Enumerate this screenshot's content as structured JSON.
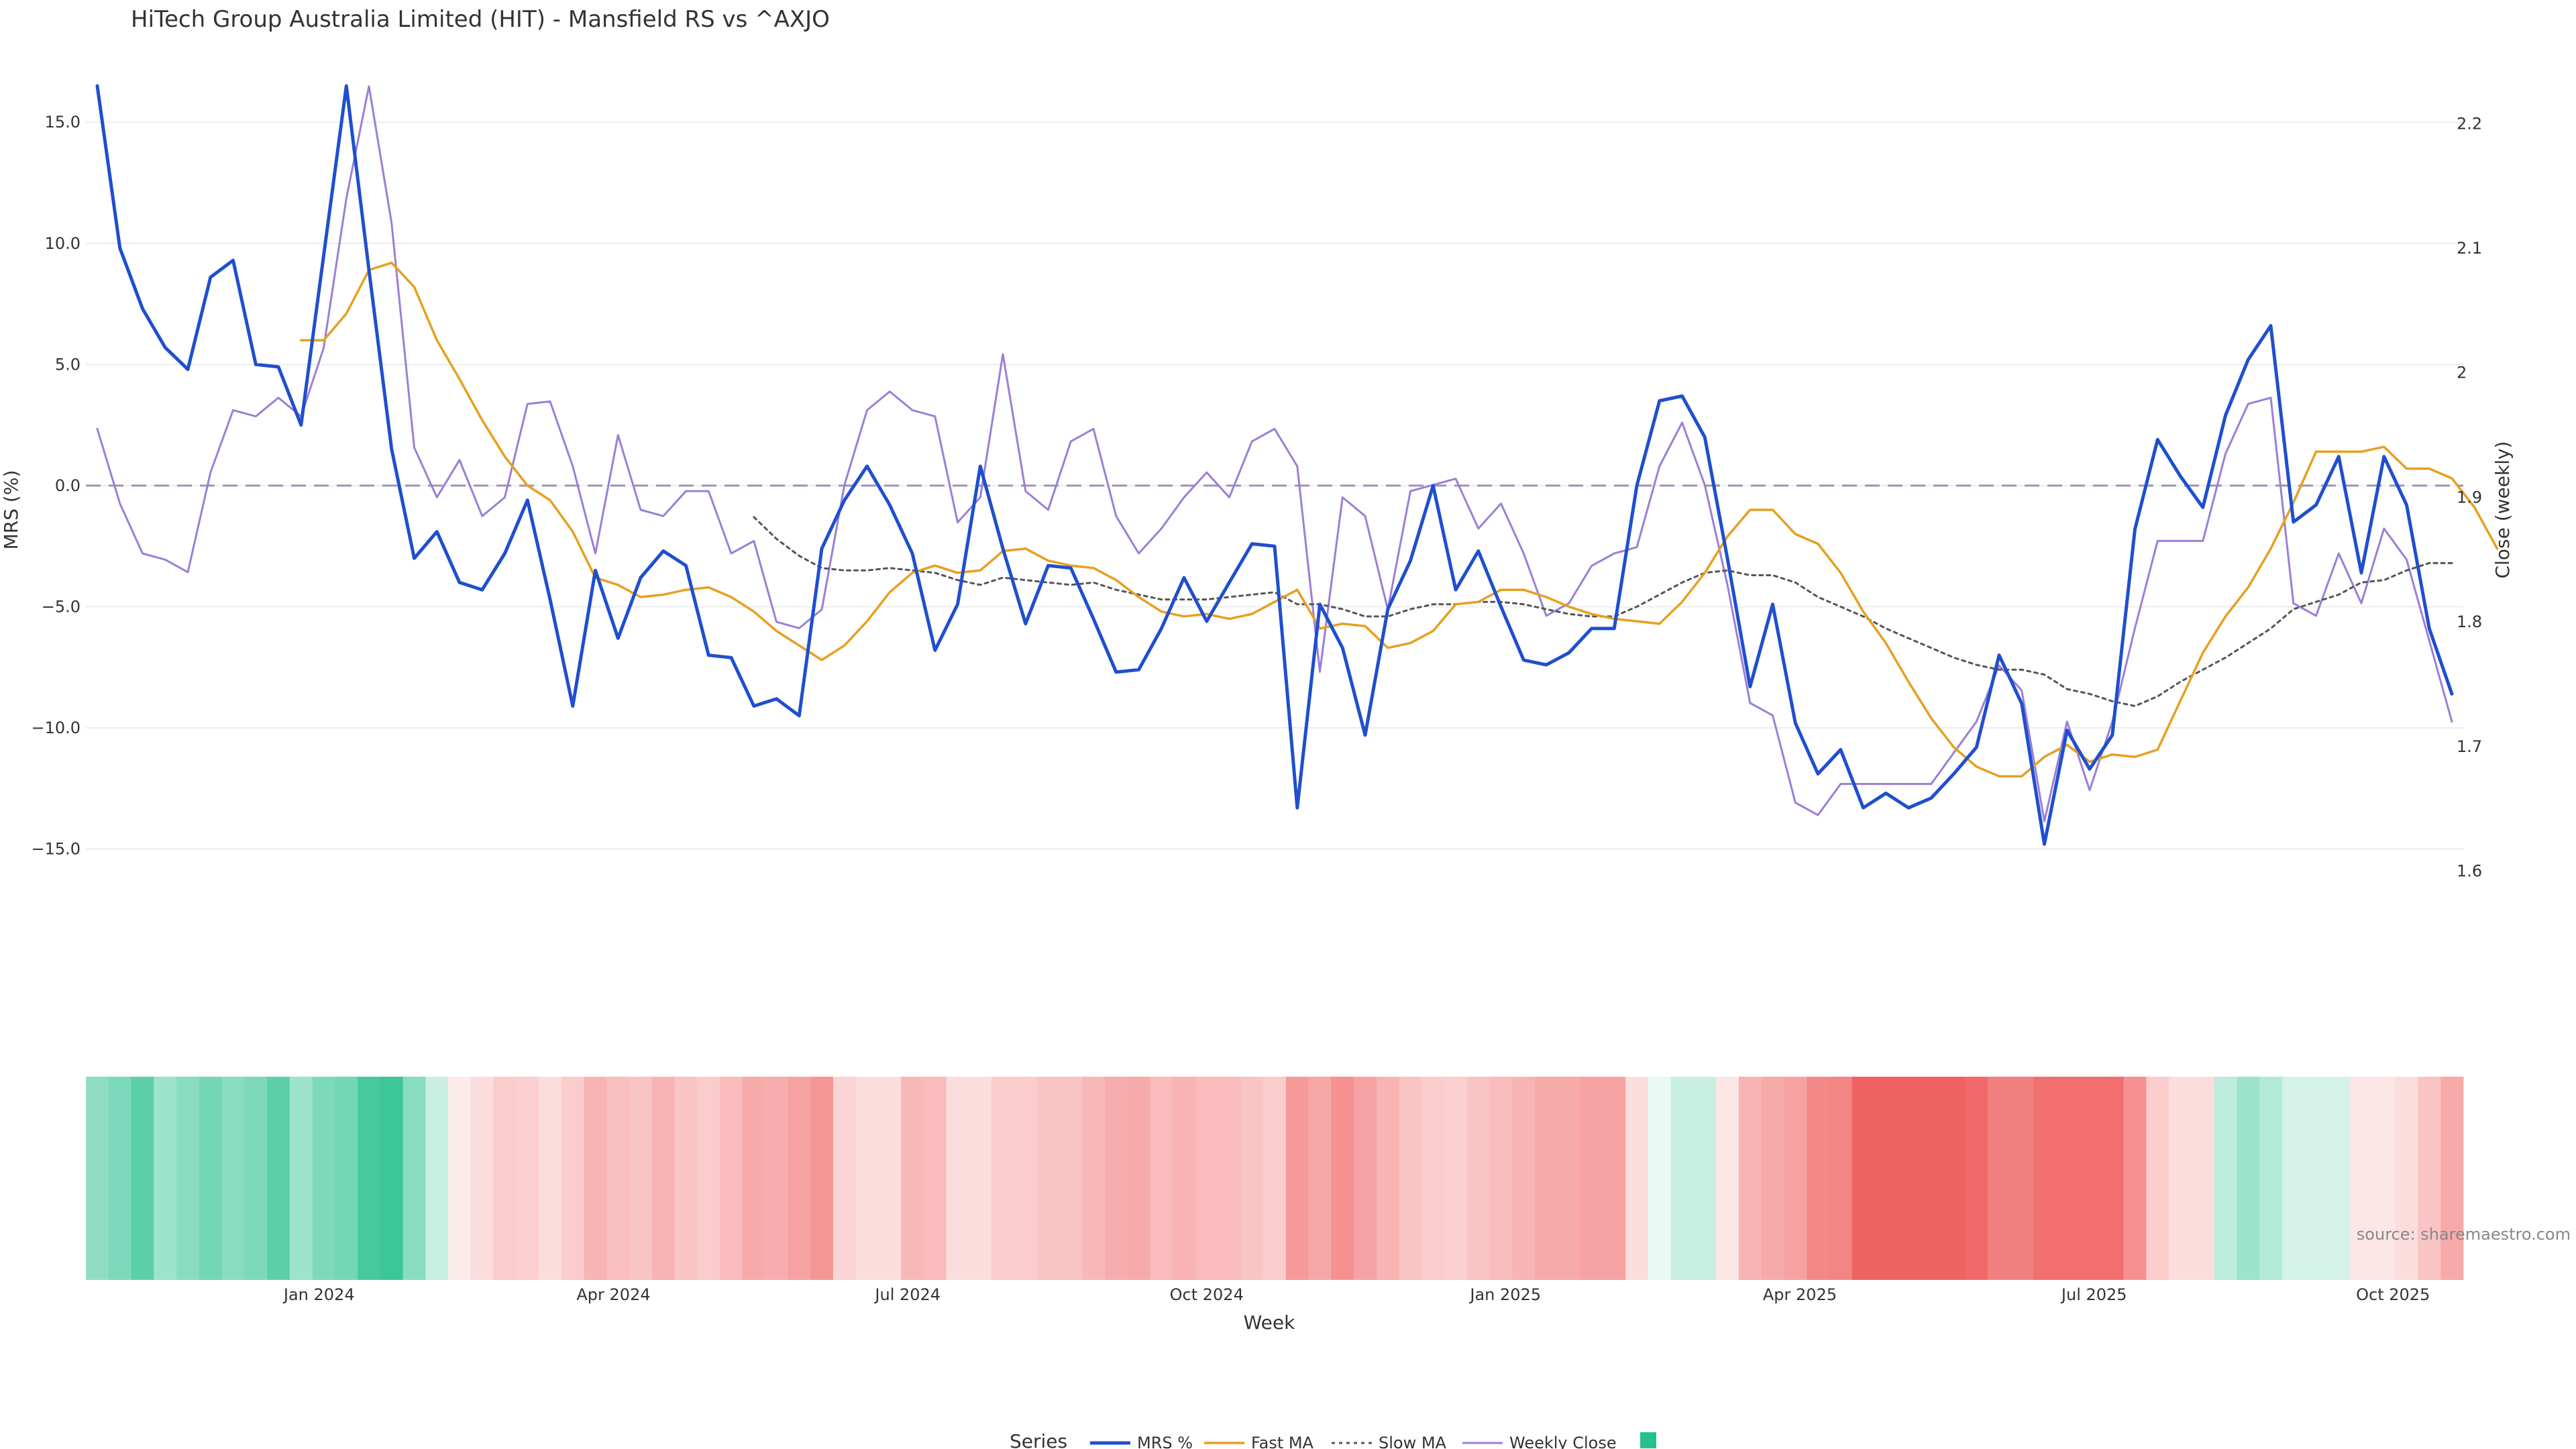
{
  "chart_data": {
    "type": "line",
    "title": "HiTech Group Australia Limited (HIT) - Mansfield RS vs ^AXJO",
    "xlabel": "Week",
    "y_left_label": "MRS (%)",
    "y_right_label": "Close (weekly)",
    "y_left_range": [
      -19.0,
      17.0
    ],
    "y_right_range": [
      1.54,
      2.24
    ],
    "y_left_ticks": [
      "15.0",
      "10.0",
      "5.0",
      "0.0",
      "−5.0",
      "−10.0",
      "−15.0"
    ],
    "y_left_tick_values": [
      15,
      10,
      5,
      0,
      -5,
      -10,
      -15
    ],
    "y_right_ticks": [
      "2.2",
      "2.1",
      "2",
      "1.9",
      "1.8",
      "1.7",
      "1.6"
    ],
    "y_right_tick_values": [
      2.2,
      2.1,
      2.0,
      1.9,
      1.8,
      1.7,
      1.6
    ],
    "x_ticks": [
      "Jan 2024",
      "Apr 2024",
      "Jul 2024",
      "Oct 2024",
      "Jan 2025",
      "Apr 2025",
      "Jul 2025",
      "Oct 2025"
    ],
    "x_tick_weeks": [
      9.8,
      22.8,
      35.8,
      49.0,
      62.2,
      75.2,
      88.2,
      101.4
    ],
    "reference_line": 0,
    "grid": true,
    "legend_placement": "bottom-center",
    "legend_title": "Series",
    "source": "source: sharemaestro.com",
    "colors": {
      "mrs": "#1f4fce",
      "fast_ma": "#e6a020",
      "slow_ma": "#555555",
      "close": "#9b7fd6",
      "zero_line": "#9a93b8",
      "positive": "#27c08d",
      "negative": "#ef5555"
    },
    "series": [
      {
        "name": "MRS %",
        "axis": "left",
        "style": "solid",
        "values": [
          16.5,
          9.8,
          7.3,
          5.7,
          4.8,
          8.6,
          9.3,
          5.0,
          4.9,
          2.5,
          9.5,
          16.5,
          8.9,
          1.5,
          -3.0,
          -1.9,
          -4.0,
          -4.3,
          -2.8,
          -0.6,
          -4.7,
          -9.1,
          -3.5,
          -6.3,
          -3.8,
          -2.7,
          -3.3,
          -7.0,
          -7.1,
          -9.1,
          -8.8,
          -9.5,
          -2.6,
          -0.6,
          0.8,
          -0.8,
          -2.8,
          -6.8,
          -4.9,
          0.8,
          -2.6,
          -5.7,
          -3.3,
          -3.4,
          -5.5,
          -7.7,
          -7.6,
          -5.9,
          -3.8,
          -5.6,
          -4.0,
          -2.4,
          -2.5,
          -13.3,
          -4.9,
          -6.7,
          -10.3,
          -5.1,
          -3.1,
          0.0,
          -4.3,
          -2.7,
          -5.0,
          -7.2,
          -7.4,
          -6.9,
          -5.9,
          -5.9,
          0.0,
          3.5,
          3.7,
          2.0,
          -3.0,
          -8.3,
          -4.9,
          -9.8,
          -11.9,
          -10.9,
          -13.3,
          -12.7,
          -13.3,
          -12.9,
          -11.9,
          -10.8,
          -7.0,
          -9.0,
          -14.8,
          -10.1,
          -11.7,
          -10.3,
          -1.8,
          1.9,
          0.4,
          -0.9,
          2.9,
          5.2,
          6.6,
          -1.5,
          -0.8,
          1.2,
          -3.6,
          1.2,
          -0.8,
          -5.9,
          -8.6
        ]
      },
      {
        "name": "Fast MA",
        "axis": "left",
        "style": "solid",
        "values": [
          null,
          null,
          null,
          null,
          null,
          null,
          null,
          null,
          null,
          6.0,
          6.0,
          7.1,
          8.9,
          9.2,
          8.2,
          6.0,
          4.4,
          2.7,
          1.2,
          0.0,
          -0.6,
          -1.9,
          -3.8,
          -4.1,
          -4.6,
          -4.5,
          -4.3,
          -4.2,
          -4.6,
          -5.2,
          -6.0,
          -6.6,
          -7.2,
          -6.6,
          -5.6,
          -4.4,
          -3.6,
          -3.3,
          -3.6,
          -3.5,
          -2.7,
          -2.6,
          -3.1,
          -3.3,
          -3.4,
          -3.9,
          -4.6,
          -5.2,
          -5.4,
          -5.3,
          -5.5,
          -5.3,
          -4.8,
          -4.3,
          -5.9,
          -5.7,
          -5.8,
          -6.7,
          -6.5,
          -6.0,
          -4.9,
          -4.8,
          -4.3,
          -4.3,
          -4.6,
          -5.0,
          -5.3,
          -5.5,
          -5.6,
          -5.7,
          -4.8,
          -3.6,
          -2.1,
          -1.0,
          -1.0,
          -2.0,
          -2.4,
          -3.6,
          -5.2,
          -6.5,
          -8.1,
          -9.6,
          -10.8,
          -11.6,
          -12.0,
          -12.0,
          -11.2,
          -10.7,
          -11.4,
          -11.1,
          -11.2,
          -10.9,
          -8.9,
          -6.9,
          -5.4,
          -4.2,
          -2.6,
          -0.7,
          1.4,
          1.4,
          1.4,
          1.6,
          0.7,
          0.7,
          0.3,
          -0.9,
          -2.6
        ]
      },
      {
        "name": "Slow MA",
        "axis": "left",
        "style": "dotted",
        "values": [
          null,
          null,
          null,
          null,
          null,
          null,
          null,
          null,
          null,
          null,
          null,
          null,
          null,
          null,
          null,
          null,
          null,
          null,
          null,
          null,
          null,
          null,
          null,
          null,
          null,
          null,
          null,
          null,
          null,
          -1.3,
          -2.2,
          -2.9,
          -3.4,
          -3.5,
          -3.5,
          -3.4,
          -3.5,
          -3.6,
          -3.9,
          -4.1,
          -3.8,
          -3.9,
          -4.0,
          -4.1,
          -4.0,
          -4.3,
          -4.5,
          -4.7,
          -4.7,
          -4.7,
          -4.6,
          -4.5,
          -4.4,
          -4.9,
          -4.9,
          -5.1,
          -5.4,
          -5.4,
          -5.1,
          -4.9,
          -4.9,
          -4.8,
          -4.8,
          -4.9,
          -5.1,
          -5.3,
          -5.4,
          -5.4,
          -5.0,
          -4.5,
          -4.0,
          -3.6,
          -3.5,
          -3.7,
          -3.7,
          -4.0,
          -4.6,
          -5.0,
          -5.4,
          -5.9,
          -6.3,
          -6.7,
          -7.1,
          -7.4,
          -7.6,
          -7.6,
          -7.8,
          -8.4,
          -8.6,
          -8.9,
          -9.1,
          -8.7,
          -8.1,
          -7.6,
          -7.1,
          -6.5,
          -5.9,
          -5.1,
          -4.8,
          -4.5,
          -4.0,
          -3.9,
          -3.5,
          -3.2,
          -3.2
        ]
      },
      {
        "name": "Weekly Close",
        "axis": "right",
        "style": "solid",
        "values": [
          1.955,
          1.895,
          1.855,
          1.85,
          1.84,
          1.92,
          1.97,
          1.965,
          1.98,
          1.965,
          2.02,
          2.14,
          2.23,
          2.12,
          1.94,
          1.9,
          1.93,
          1.885,
          1.9,
          1.975,
          1.977,
          1.925,
          1.855,
          1.95,
          1.89,
          1.885,
          1.905,
          1.905,
          1.855,
          1.865,
          1.8,
          1.795,
          1.81,
          1.91,
          1.97,
          1.985,
          1.97,
          1.965,
          1.88,
          1.9,
          2.015,
          1.905,
          1.89,
          1.945,
          1.955,
          1.885,
          1.855,
          1.875,
          1.9,
          1.92,
          1.9,
          1.945,
          1.955,
          1.925,
          1.76,
          1.9,
          1.885,
          1.81,
          1.905,
          1.91,
          1.915,
          1.875,
          1.895,
          1.855,
          1.805,
          1.815,
          1.845,
          1.855,
          1.86,
          1.925,
          1.96,
          1.91,
          1.83,
          1.735,
          1.725,
          1.655,
          1.645,
          1.67,
          1.67,
          1.67,
          1.67,
          1.67,
          1.695,
          1.72,
          1.765,
          1.745,
          1.64,
          1.72,
          1.665,
          1.72,
          1.795,
          1.865,
          1.865,
          1.865,
          1.935,
          1.975,
          1.98,
          1.815,
          1.805,
          1.855,
          1.815,
          1.875,
          1.85,
          1.785,
          1.72
        ]
      }
    ],
    "heatmap_strip": {
      "type": "heatmap",
      "cells": [
        0.52,
        0.6,
        0.75,
        0.45,
        0.55,
        0.65,
        0.55,
        0.6,
        0.75,
        0.45,
        0.6,
        0.65,
        0.85,
        0.9,
        0.55,
        0.25,
        -0.12,
        -0.2,
        -0.3,
        -0.28,
        -0.2,
        -0.3,
        -0.45,
        -0.38,
        -0.35,
        -0.45,
        -0.35,
        -0.3,
        -0.4,
        -0.5,
        -0.48,
        -0.55,
        -0.62,
        -0.25,
        -0.2,
        -0.2,
        -0.42,
        -0.4,
        -0.2,
        -0.2,
        -0.3,
        -0.3,
        -0.35,
        -0.35,
        -0.42,
        -0.48,
        -0.5,
        -0.4,
        -0.45,
        -0.4,
        -0.4,
        -0.35,
        -0.3,
        -0.6,
        -0.52,
        -0.65,
        -0.55,
        -0.45,
        -0.35,
        -0.3,
        -0.28,
        -0.35,
        -0.4,
        -0.45,
        -0.5,
        -0.5,
        -0.55,
        -0.55,
        -0.2,
        0.1,
        0.25,
        0.25,
        -0.15,
        -0.45,
        -0.5,
        -0.55,
        -0.7,
        -0.72,
        -0.92,
        -0.92,
        -0.92,
        -0.92,
        -0.92,
        -0.88,
        -0.75,
        -0.75,
        -0.85,
        -0.85,
        -0.85,
        -0.85,
        -0.65,
        -0.3,
        -0.2,
        -0.2,
        0.3,
        0.45,
        0.35,
        0.2,
        0.2,
        0.2,
        -0.15,
        -0.15,
        -0.2,
        -0.35,
        -0.5
      ]
    },
    "legend": [
      "MRS %",
      "Fast MA",
      "Slow MA",
      "Weekly Close",
      ""
    ]
  }
}
